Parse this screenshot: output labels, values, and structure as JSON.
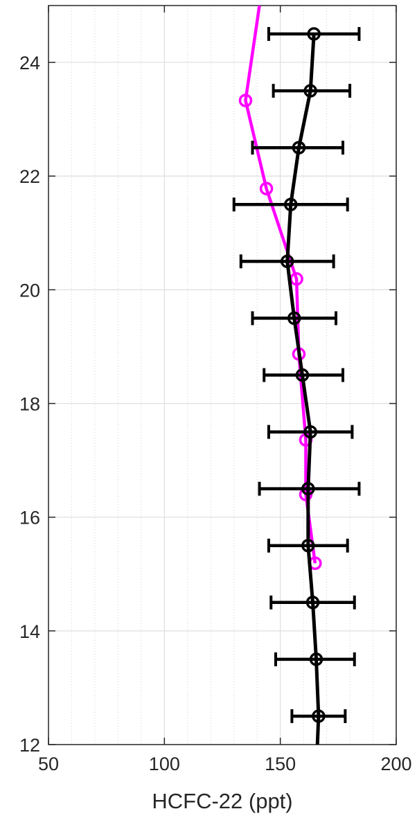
{
  "chart_data": {
    "type": "line",
    "title": "",
    "xlabel": "HCFC-22 (ppt)",
    "ylabel": "",
    "xlim": [
      50,
      200
    ],
    "ylim": [
      12,
      25
    ],
    "x_ticks": [
      50,
      100,
      150,
      200
    ],
    "y_ticks": [
      12,
      14,
      16,
      18,
      20,
      22,
      24
    ],
    "grid": true,
    "minor_grid_x": true,
    "legend": "none",
    "series": [
      {
        "color": "#ff00ff",
        "marker": "circle",
        "points": [
          {
            "x": 141,
            "y": 25.0
          },
          {
            "x": 135,
            "y": 23.33
          },
          {
            "x": 144,
            "y": 21.78
          },
          {
            "x": 157,
            "y": 20.19
          },
          {
            "x": 158,
            "y": 18.87
          },
          {
            "x": 161,
            "y": 17.36
          },
          {
            "x": 161,
            "y": 16.4
          },
          {
            "x": 165,
            "y": 15.19
          }
        ],
        "marker_points": [
          {
            "x": 135,
            "y": 23.33
          },
          {
            "x": 144,
            "y": 21.78
          },
          {
            "x": 157,
            "y": 20.19
          },
          {
            "x": 158,
            "y": 18.87
          },
          {
            "x": 161,
            "y": 17.36
          },
          {
            "x": 161,
            "y": 16.4
          },
          {
            "x": 165,
            "y": 15.19
          }
        ]
      },
      {
        "color": "#000000",
        "marker": "circle",
        "error_bars": "horizontal",
        "points": [
          {
            "x": 164.5,
            "y": 24.5,
            "xmin": 145,
            "xmax": 184
          },
          {
            "x": 163,
            "y": 23.5,
            "xmin": 147,
            "xmax": 180
          },
          {
            "x": 158,
            "y": 22.5,
            "xmin": 138,
            "xmax": 177
          },
          {
            "x": 154.5,
            "y": 21.5,
            "xmin": 130,
            "xmax": 179
          },
          {
            "x": 153,
            "y": 20.5,
            "xmin": 133,
            "xmax": 173
          },
          {
            "x": 156,
            "y": 19.5,
            "xmin": 138,
            "xmax": 174
          },
          {
            "x": 159.5,
            "y": 18.5,
            "xmin": 143,
            "xmax": 177
          },
          {
            "x": 163,
            "y": 17.5,
            "xmin": 145,
            "xmax": 181
          },
          {
            "x": 162,
            "y": 16.5,
            "xmin": 141,
            "xmax": 184
          },
          {
            "x": 162,
            "y": 15.5,
            "xmin": 145,
            "xmax": 179
          },
          {
            "x": 164,
            "y": 14.5,
            "xmin": 146,
            "xmax": 182
          },
          {
            "x": 165.5,
            "y": 13.5,
            "xmin": 148,
            "xmax": 182
          },
          {
            "x": 166.5,
            "y": 12.5,
            "xmin": 155,
            "xmax": 178
          }
        ],
        "line_extends_to": {
          "x": 166,
          "y": 12.0
        }
      }
    ]
  }
}
